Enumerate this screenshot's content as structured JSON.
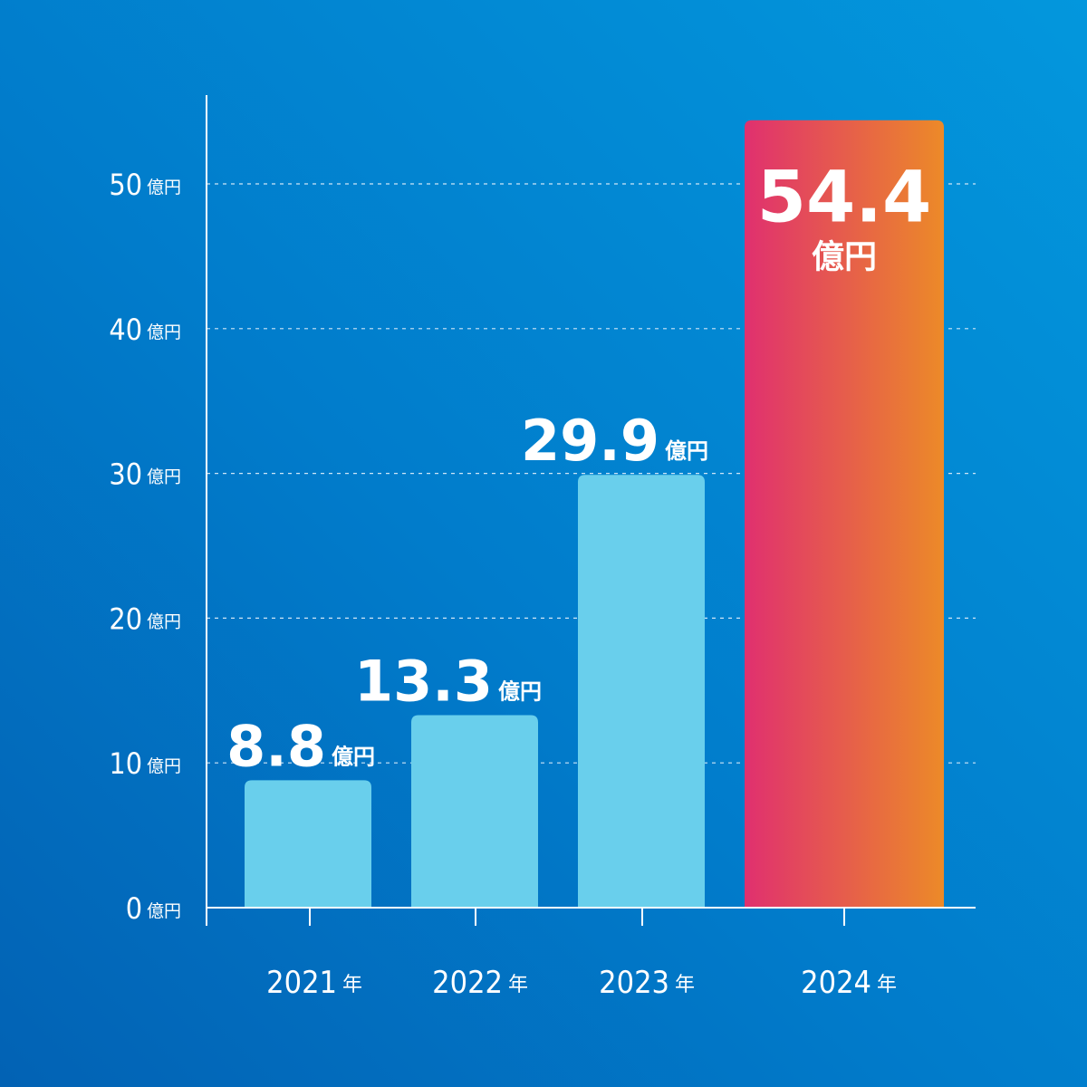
{
  "chart_data": {
    "type": "bar",
    "title": "",
    "xlabel": "",
    "ylabel": "",
    "unit": "億円",
    "year_suffix": "年",
    "categories": [
      "2021",
      "2022",
      "2023",
      "2024"
    ],
    "values": [
      8.8,
      13.3,
      29.9,
      54.4
    ],
    "value_labels": [
      "8.8",
      "13.3",
      "29.9",
      "54.4"
    ],
    "ylim": [
      0,
      55
    ],
    "yticks": [
      0,
      10,
      20,
      30,
      40,
      50
    ],
    "grid": true,
    "grid_style": "dashed",
    "highlight_index": 3,
    "colors": {
      "bar": "#69cfec",
      "highlight_gradient": [
        "#e0306f",
        "#ec8a28"
      ],
      "axis": "#ffffff",
      "text": "#ffffff"
    }
  }
}
